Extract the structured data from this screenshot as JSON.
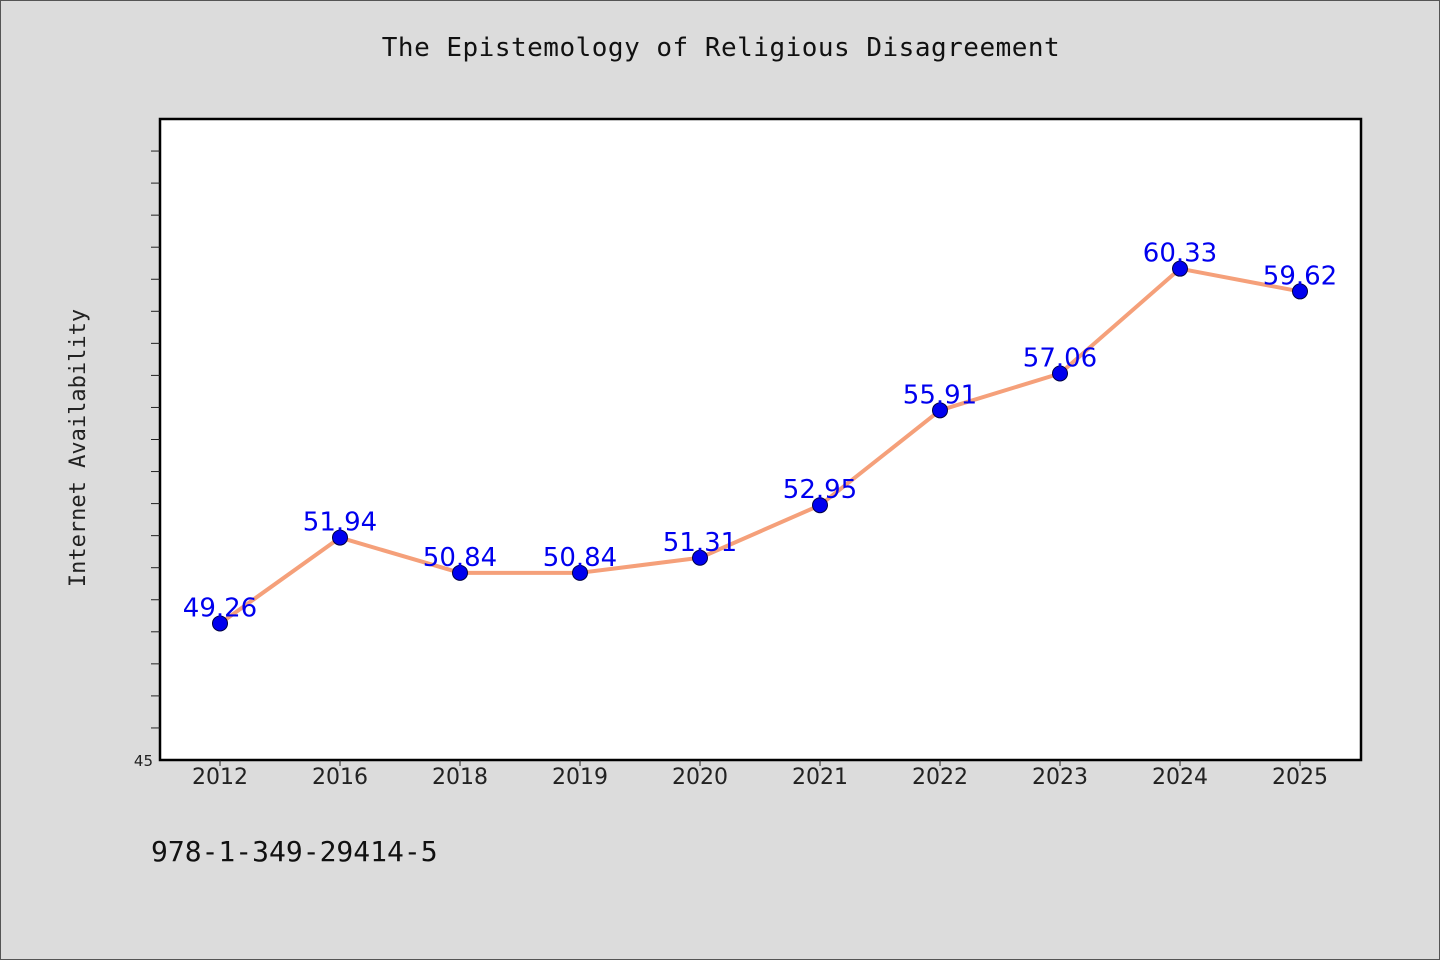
{
  "chart_data": {
    "type": "line",
    "title": "The Epistemology of Religious Disagreement",
    "xlabel": "",
    "ylabel": "Internet Availability",
    "categories": [
      "2012",
      "2016",
      "2018",
      "2019",
      "2020",
      "2021",
      "2022",
      "2023",
      "2024",
      "2025"
    ],
    "series": [
      {
        "values": [
          49.26,
          51.94,
          50.84,
          50.84,
          51.31,
          52.95,
          55.91,
          57.06,
          60.33,
          59.62
        ],
        "labels": [
          "49.26",
          "51.94",
          "50.84",
          "50.84",
          "51.31",
          "52.95",
          "55.91",
          "57.06",
          "60.33",
          "59.62"
        ],
        "line_color": "#f5a07a",
        "marker_color": "#0000ee"
      }
    ],
    "ylim": [
      45,
      65
    ],
    "y_tick_labels": [
      "45"
    ],
    "grid": false,
    "legend": "none"
  },
  "footer": {
    "code": "978-1-349-29414-5"
  },
  "colors": {
    "background": "#dcdcdc",
    "plot_background": "#ffffff",
    "label_color": "#0000ee"
  }
}
